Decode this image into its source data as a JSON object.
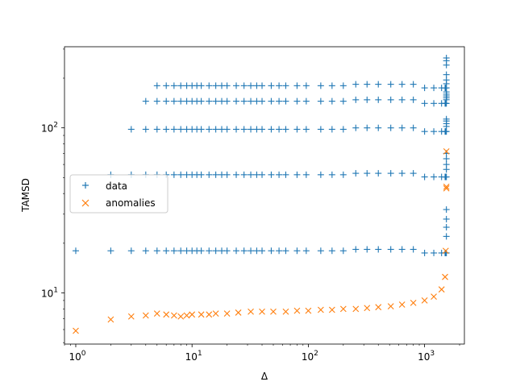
{
  "chart_data": {
    "type": "scatter",
    "xscale": "log",
    "yscale": "log",
    "xlabel": "Δ",
    "ylabel": "TAMSD",
    "xlim": [
      0.8,
      2200
    ],
    "ylim": [
      4.9,
      310
    ],
    "xticks": [
      {
        "value": 1,
        "label": "10⁰",
        "base": "10",
        "exp": "0"
      },
      {
        "value": 10,
        "label": "10¹",
        "base": "10",
        "exp": "1"
      },
      {
        "value": 100,
        "label": "10²",
        "base": "10",
        "exp": "2"
      },
      {
        "value": 1000,
        "label": "10³",
        "base": "10",
        "exp": "3"
      }
    ],
    "yticks": [
      {
        "value": 10,
        "label": "10¹",
        "base": "10",
        "exp": "1"
      },
      {
        "value": 100,
        "label": "10²",
        "base": "10",
        "exp": "2"
      }
    ],
    "legend": {
      "position": "center-left",
      "entries": [
        {
          "label": "data",
          "marker": "+",
          "color": "#1f77b4"
        },
        {
          "label": "anomalies",
          "marker": "x",
          "color": "#ff7f0e"
        }
      ]
    },
    "series": [
      {
        "name": "data",
        "marker": "+",
        "color": "#1f77b4",
        "trajectories": [
          {
            "start_x": 1,
            "plateau": 18,
            "end_tail": [
              22,
              25,
              28,
              32
            ]
          },
          {
            "start_x": 2,
            "plateau": 52,
            "end_tail": [
              56,
              60,
              65,
              70
            ]
          },
          {
            "start_x": 3,
            "plateau": 98,
            "end_tail": [
              102,
              106,
              110,
              113
            ]
          },
          {
            "start_x": 4,
            "plateau": 145,
            "end_tail": [
              148,
              152,
              156,
              160,
              165
            ]
          },
          {
            "start_x": 5,
            "plateau": 180,
            "end_tail": [
              185,
              195,
              210,
              240,
              255,
              265
            ]
          }
        ],
        "sample_x": [
          1,
          2,
          3,
          4,
          5,
          6,
          7,
          8,
          9,
          10,
          11,
          12,
          14,
          16,
          18,
          20,
          24,
          28,
          32,
          36,
          40,
          48,
          56,
          64,
          80,
          96,
          128,
          160,
          200,
          256,
          320,
          400,
          512,
          640,
          800,
          1000,
          1200,
          1400,
          1500,
          1520,
          1540
        ]
      },
      {
        "name": "anomalies",
        "marker": "x",
        "color": "#ff7f0e",
        "x": [
          1,
          2,
          3,
          4,
          5,
          6,
          7,
          8,
          9,
          10,
          12,
          14,
          16,
          20,
          25,
          32,
          40,
          50,
          64,
          80,
          100,
          128,
          160,
          200,
          256,
          320,
          400,
          512,
          640,
          800,
          1000,
          1200,
          1400,
          1500,
          1520,
          1540
        ],
        "y": [
          5.9,
          6.9,
          7.2,
          7.3,
          7.5,
          7.4,
          7.3,
          7.2,
          7.3,
          7.4,
          7.4,
          7.4,
          7.5,
          7.5,
          7.6,
          7.7,
          7.7,
          7.7,
          7.7,
          7.8,
          7.8,
          7.9,
          7.9,
          8.0,
          8.0,
          8.1,
          8.2,
          8.3,
          8.5,
          8.7,
          9.0,
          9.5,
          10.5,
          12.5,
          18,
          43
        ],
        "extra_high": [
          {
            "x": 1540,
            "y": 72
          },
          {
            "x": 1540,
            "y": 44
          }
        ]
      }
    ]
  }
}
